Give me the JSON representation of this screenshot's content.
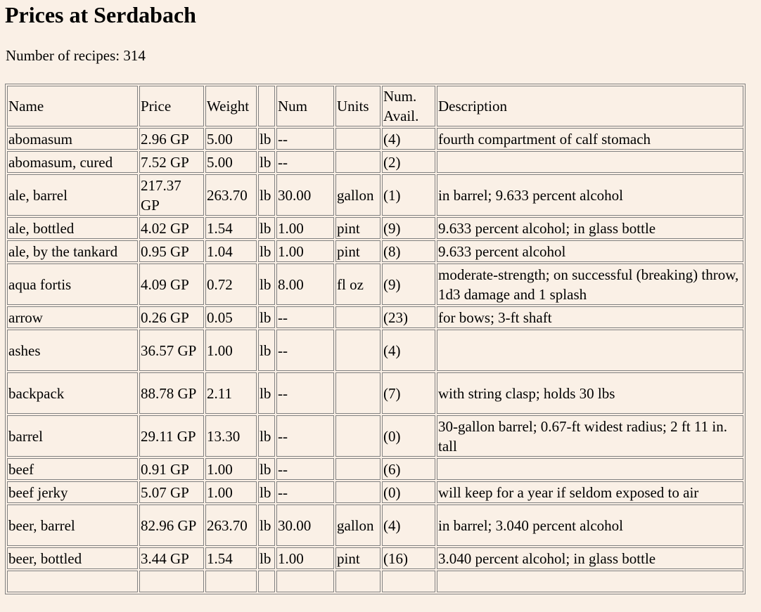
{
  "page": {
    "title": "Prices at Serdabach",
    "count_label": "Number of recipes: 314"
  },
  "table": {
    "headers": {
      "name": "Name",
      "price": "Price",
      "weight": "Weight",
      "wunit": "",
      "num": "Num",
      "units": "Units",
      "avail": "Num. Avail.",
      "desc": "Description"
    },
    "rows": [
      {
        "name": "abomasum",
        "price": "2.96 GP",
        "weight": "5.00",
        "wunit": "lb",
        "num": "--",
        "units": "",
        "avail": "(4)",
        "desc": "fourth compartment of calf stomach"
      },
      {
        "name": "abomasum, cured",
        "price": "7.52 GP",
        "weight": "5.00",
        "wunit": "lb",
        "num": "--",
        "units": "",
        "avail": "(2)",
        "desc": ""
      },
      {
        "name": "ale, barrel",
        "price": "217.37 GP",
        "weight": "263.70",
        "wunit": "lb",
        "num": "30.00",
        "units": "gallon",
        "avail": "(1)",
        "desc": "in barrel; 9.633 percent alcohol"
      },
      {
        "name": "ale, bottled",
        "price": "4.02 GP",
        "weight": "1.54",
        "wunit": "lb",
        "num": "1.00",
        "units": "pint",
        "avail": "(9)",
        "desc": "9.633 percent alcohol; in glass bottle"
      },
      {
        "name": "ale, by the tankard",
        "price": "0.95 GP",
        "weight": "1.04",
        "wunit": "lb",
        "num": "1.00",
        "units": "pint",
        "avail": "(8)",
        "desc": "9.633 percent alcohol"
      },
      {
        "name": "aqua fortis",
        "price": "4.09 GP",
        "weight": "0.72",
        "wunit": "lb",
        "num": "8.00",
        "units": "fl oz",
        "avail": "(9)",
        "desc": "moderate-strength; on successful (breaking) throw, 1d3 damage and 1 splash"
      },
      {
        "name": "arrow",
        "price": "0.26 GP",
        "weight": "0.05",
        "wunit": "lb",
        "num": "--",
        "units": "",
        "avail": "(23)",
        "desc": "for bows; 3-ft shaft"
      },
      {
        "name": "ashes",
        "price": "36.57 GP",
        "weight": "1.00",
        "wunit": "lb",
        "num": "--",
        "units": "",
        "avail": "(4)",
        "desc": ""
      },
      {
        "name": "backpack",
        "price": "88.78 GP",
        "weight": "2.11",
        "wunit": "lb",
        "num": "--",
        "units": "",
        "avail": "(7)",
        "desc": "with string clasp; holds 30 lbs"
      },
      {
        "name": "barrel",
        "price": "29.11 GP",
        "weight": "13.30",
        "wunit": "lb",
        "num": "--",
        "units": "",
        "avail": "(0)",
        "desc": "30-gallon barrel; 0.67-ft widest radius; 2 ft 11 in. tall"
      },
      {
        "name": "beef",
        "price": "0.91 GP",
        "weight": "1.00",
        "wunit": "lb",
        "num": "--",
        "units": "",
        "avail": "(6)",
        "desc": ""
      },
      {
        "name": "beef jerky",
        "price": "5.07 GP",
        "weight": "1.00",
        "wunit": "lb",
        "num": "--",
        "units": "",
        "avail": "(0)",
        "desc": "will keep for a year if seldom exposed to air"
      },
      {
        "name": "beer, barrel",
        "price": "82.96 GP",
        "weight": "263.70",
        "wunit": "lb",
        "num": "30.00",
        "units": "gallon",
        "avail": "(4)",
        "desc": "in barrel; 3.040 percent alcohol"
      },
      {
        "name": "beer, bottled",
        "price": "3.44 GP",
        "weight": "1.54",
        "wunit": "lb",
        "num": "1.00",
        "units": "pint",
        "avail": "(16)",
        "desc": "3.040 percent alcohol; in glass bottle"
      },
      {
        "name": "",
        "price": "",
        "weight": "",
        "wunit": "",
        "num": "",
        "units": "",
        "avail": "",
        "desc": ""
      }
    ]
  }
}
